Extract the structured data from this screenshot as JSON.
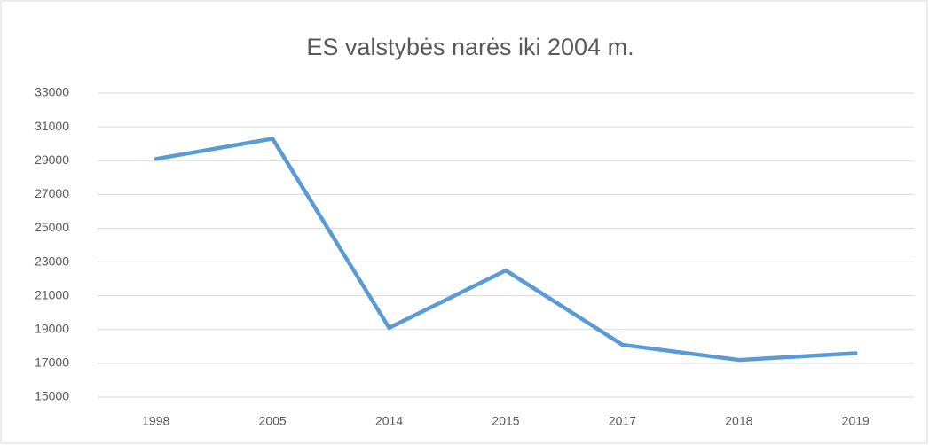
{
  "chart_data": {
    "type": "line",
    "title": "ES valstybės narės iki 2004 m.",
    "categories": [
      "1998",
      "2005",
      "2014",
      "2015",
      "2017",
      "2018",
      "2019"
    ],
    "series": [
      {
        "name": "ES valstybės narės iki 2004 m.",
        "color": "#5b9bd5",
        "values": [
          29100,
          30300,
          19100,
          22500,
          18100,
          17200,
          17600
        ]
      }
    ],
    "ylim": [
      15000,
      33000
    ],
    "yticks": [
      15000,
      17000,
      19000,
      21000,
      23000,
      25000,
      27000,
      29000,
      31000,
      33000
    ],
    "grid": true
  }
}
